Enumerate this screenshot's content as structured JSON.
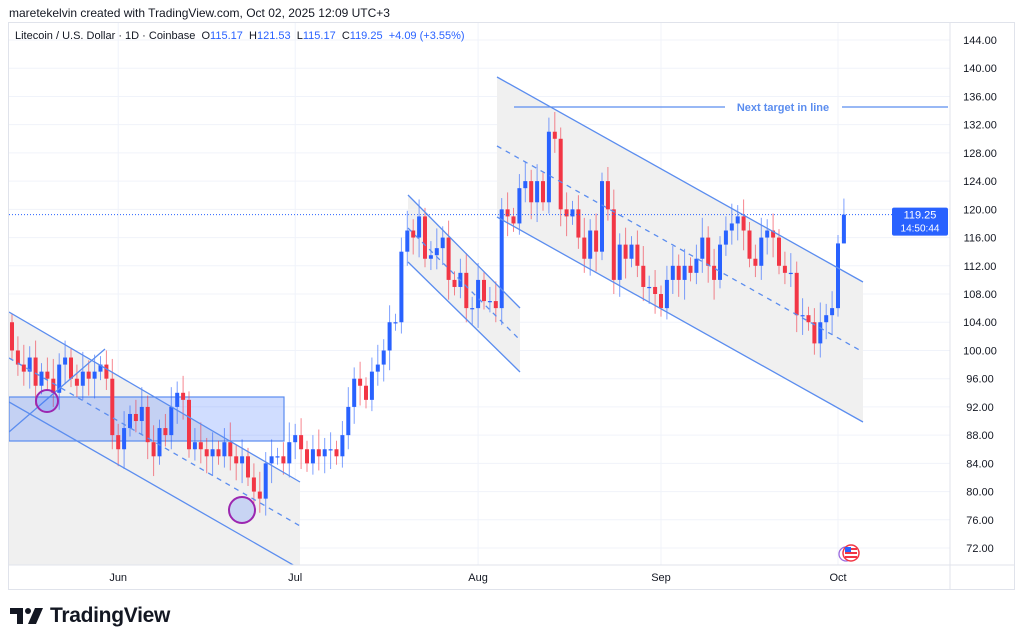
{
  "header": {
    "credit": "maretekelvin created with TradingView.com, Oct 02, 2025 12:09 UTC+3"
  },
  "legend": {
    "symbol": "Litecoin / U.S. Dollar · 1D · Coinbase",
    "open_label": "O",
    "open": "115.17",
    "high_label": "H",
    "high": "121.53",
    "low_label": "L",
    "low": "115.17",
    "close_label": "C",
    "close": "119.25",
    "change": "+4.09 (+3.55%)"
  },
  "price_badge": {
    "price": "119.25",
    "countdown": "14:50:44"
  },
  "annotation": {
    "target_label": "Next target in line"
  },
  "logo": {
    "text": "TradingView"
  },
  "colors": {
    "up": "#2962ff",
    "down": "#f23645",
    "drawing": "#5b8def",
    "circle": "#9c27b0",
    "channel_fill": "#f0f0f0"
  },
  "event_icon": "us-flag-economic-event-icon",
  "chart_data": {
    "type": "candlestick",
    "interval": "1D",
    "start_date": "2025-05-14",
    "end_date": "2025-10-02",
    "ylim": [
      70,
      146
    ],
    "y_ticks": [
      "144.00",
      "140.00",
      "136.00",
      "132.00",
      "128.00",
      "124.00",
      "120.00",
      "116.00",
      "112.00",
      "108.00",
      "104.00",
      "100.00",
      "96.00",
      "92.00",
      "88.00",
      "84.00",
      "80.00",
      "76.00",
      "72.00"
    ],
    "x_ticks": [
      {
        "label": "Jun",
        "date": "2025-06-01"
      },
      {
        "label": "Jul",
        "date": "2025-07-01"
      },
      {
        "label": "Aug",
        "date": "2025-08-01"
      },
      {
        "label": "Sep",
        "date": "2025-09-01"
      },
      {
        "label": "Oct",
        "date": "2025-10-01"
      }
    ],
    "first_open": 104,
    "closes": [
      100,
      98,
      97,
      99,
      95,
      97,
      96,
      94,
      98,
      99,
      96,
      95,
      97,
      96,
      97,
      98,
      96,
      88,
      86,
      89,
      91,
      90,
      92,
      87,
      85,
      89,
      88,
      92,
      94,
      93,
      86,
      87,
      86,
      85,
      86,
      85,
      87,
      85,
      84,
      85,
      82,
      80,
      79,
      84,
      85,
      85,
      84,
      87,
      88,
      86,
      84,
      86,
      85,
      86,
      86,
      85,
      88,
      92,
      96,
      95,
      93,
      97,
      98,
      100,
      104,
      104,
      114,
      117,
      116,
      119,
      113,
      113.5,
      114.5,
      116,
      110,
      109,
      111,
      106,
      106,
      110,
      107,
      107,
      106,
      120,
      119,
      118,
      123,
      124,
      121,
      124,
      121,
      131,
      130,
      120,
      119,
      120,
      116,
      113,
      117,
      114,
      124,
      120,
      110,
      115,
      113,
      115,
      112,
      109,
      109,
      108,
      106,
      110,
      112,
      110,
      112,
      111,
      113,
      116,
      112,
      110,
      115,
      117,
      118,
      119,
      117,
      113,
      112,
      116,
      117,
      116,
      112,
      111,
      111,
      105,
      105,
      104,
      101,
      104,
      105,
      106,
      115.17,
      119.25
    ],
    "last_candle": {
      "open": 115.17,
      "high": 121.53,
      "low": 115.17,
      "close": 119.25
    },
    "last_price": 119.25,
    "target_level": 134.5,
    "grid": true
  }
}
